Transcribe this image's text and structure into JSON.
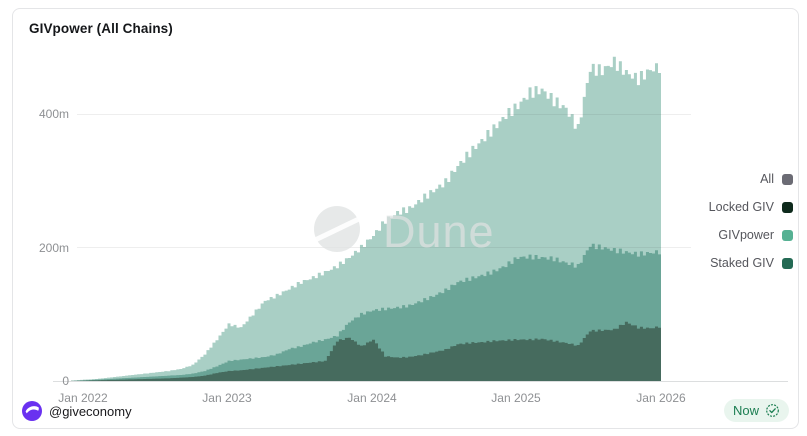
{
  "header": {
    "title": "GIVpower (All Chains)"
  },
  "watermark": {
    "text": "Dune"
  },
  "footer": {
    "author": "@giveconomy",
    "refresh_label": "Now"
  },
  "legend": {
    "position": "right",
    "items": [
      {
        "label": "All",
        "color": "#6b6b74"
      },
      {
        "label": "Locked GIV",
        "color": "#0e2a1c"
      },
      {
        "label": "GIVpower",
        "color": "#56b193"
      },
      {
        "label": "Staked GIV",
        "color": "#246a54"
      }
    ]
  },
  "colors": {
    "givpower_area": "#a9cfc5",
    "staked_area": "#6aa597",
    "locked_area": "#466b5e",
    "grid_line": "rgba(70,70,70,0.09)",
    "axis_line": "#dcdedf",
    "badge_bg": "#e9f5ee",
    "badge_green": "#1c7e52",
    "giveth_purple": "#6a31f0",
    "watermark_gray": "#dfe2e2"
  },
  "chart_data": {
    "type": "area",
    "title": "GIVpower (All Chains)",
    "value_unit": "millions",
    "ylim": [
      0,
      500
    ],
    "grid": true,
    "legend_position": "right",
    "ytick_labels": [
      "400m",
      "200m",
      "0"
    ],
    "ytick_values": [
      400,
      200,
      0
    ],
    "xtick_labels": [
      "Jan 2022",
      "Jan 2023",
      "Jan 2024",
      "Jan 2025",
      "Jan 2026"
    ],
    "x_months": [
      "2021-12",
      "2022-01",
      "2022-02",
      "2022-03",
      "2022-04",
      "2022-05",
      "2022-06",
      "2022-07",
      "2022-08",
      "2022-09",
      "2022-10",
      "2022-11",
      "2022-12",
      "2023-01",
      "2023-02",
      "2023-03",
      "2023-04",
      "2023-05",
      "2023-06",
      "2023-07",
      "2023-08",
      "2023-09",
      "2023-10",
      "2023-11",
      "2023-12",
      "2024-01",
      "2024-02",
      "2024-03",
      "2024-04",
      "2024-05",
      "2024-06",
      "2024-07",
      "2024-08",
      "2024-09",
      "2024-10",
      "2024-11",
      "2024-12",
      "2025-01",
      "2025-02",
      "2025-03",
      "2025-04",
      "2025-05",
      "2025-06",
      "2025-07",
      "2025-08",
      "2025-09",
      "2025-10",
      "2025-11",
      "2025-12",
      "2026-01"
    ],
    "series": [
      {
        "name": "GIVpower",
        "fill": "#a9cfc5",
        "values": [
          0.5,
          2,
          3,
          5,
          7,
          9,
          11,
          13,
          15,
          18,
          24,
          40,
          62,
          85,
          80,
          100,
          120,
          128,
          138,
          148,
          155,
          163,
          172,
          185,
          200,
          218,
          240,
          252,
          258,
          272,
          285,
          298,
          322,
          342,
          360,
          378,
          398,
          412,
          432,
          436,
          420,
          408,
          378,
          468,
          465,
          478,
          462,
          452,
          466,
          472
        ]
      },
      {
        "name": "Staked GIV",
        "fill": "#6aa597",
        "values": [
          0.2,
          1,
          2,
          3,
          4,
          5,
          6,
          7,
          8,
          9,
          11,
          15,
          22,
          30,
          32,
          34,
          36,
          40,
          48,
          52,
          58,
          62,
          68,
          88,
          100,
          106,
          108,
          110,
          113,
          120,
          127,
          136,
          148,
          153,
          158,
          164,
          173,
          185,
          186,
          185,
          183,
          177,
          172,
          203,
          200,
          196,
          193,
          190,
          192,
          194
        ]
      },
      {
        "name": "Locked GIV",
        "fill": "#466b5e",
        "values": [
          0.1,
          0.5,
          1,
          1.5,
          2,
          2.5,
          3,
          3.5,
          4,
          5,
          6,
          8,
          12,
          15,
          16,
          18,
          20,
          22,
          24,
          26,
          28,
          30,
          60,
          65,
          52,
          62,
          37,
          35,
          36,
          39,
          43,
          47,
          55,
          57,
          58,
          60,
          61,
          62,
          62,
          63,
          60,
          57,
          53,
          75,
          76,
          77,
          88,
          80,
          79,
          82
        ]
      }
    ]
  }
}
